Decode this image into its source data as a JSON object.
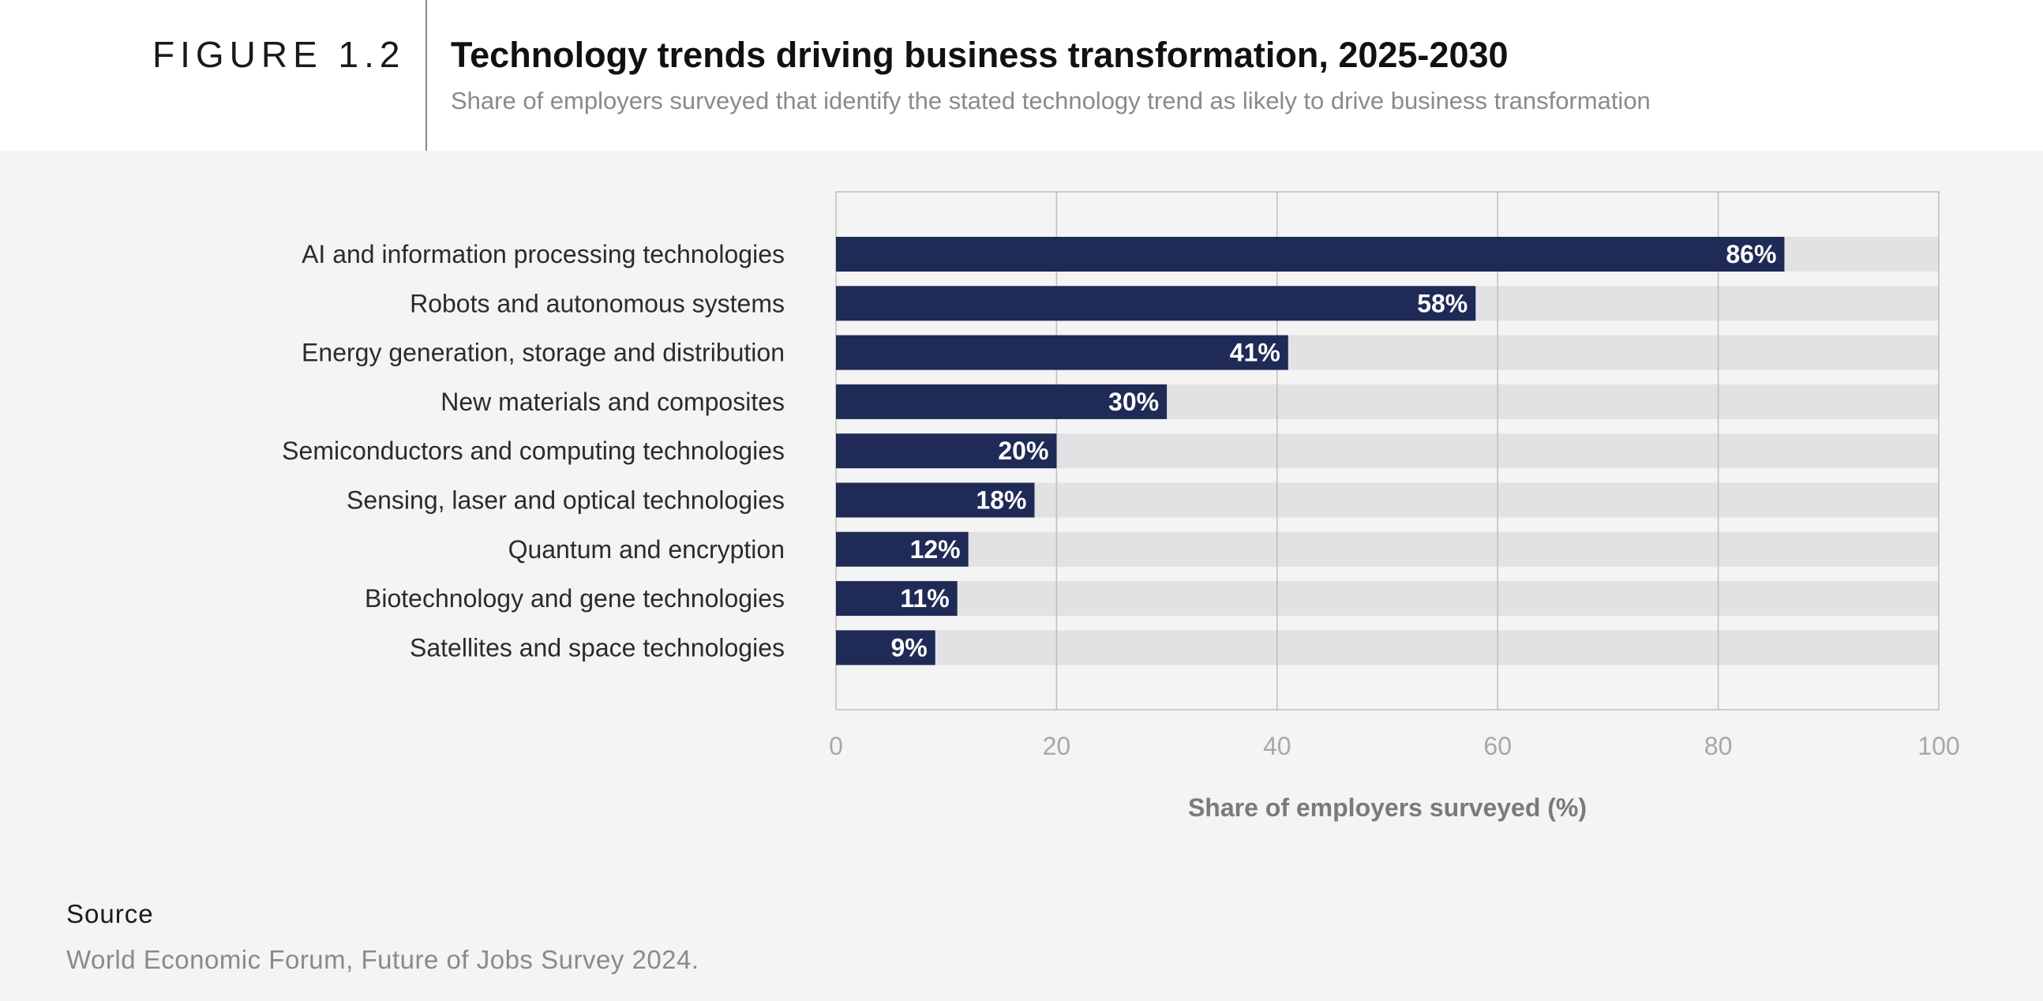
{
  "figure_label": "FIGURE 1.2",
  "source": {
    "label": "Source",
    "text": "World Economic Forum, Future of Jobs Survey 2024."
  },
  "colors": {
    "bar": "#1f2a56",
    "track": "#e2e2e5",
    "grid": "#bdbdbd",
    "tick": "#a8a8a8",
    "axis_label": "#7a7a7a",
    "category_text": "#2b2b2b",
    "value_label": "#ffffff"
  },
  "chart_data": {
    "type": "bar",
    "orientation": "horizontal",
    "title": "Technology trends driving business transformation, 2025-2030",
    "subtitle": "Share of employers surveyed that identify the stated technology trend as likely to drive business transformation",
    "xlabel": "Share of employers surveyed (%)",
    "ylabel": "",
    "xlim": [
      0,
      100
    ],
    "xticks": [
      0,
      20,
      40,
      60,
      80,
      100
    ],
    "grid": true,
    "categories": [
      "AI and information processing technologies",
      "Robots and autonomous systems",
      "Energy generation, storage and distribution",
      "New materials and composites",
      "Semiconductors and computing technologies",
      "Sensing, laser and optical technologies",
      "Quantum and encryption",
      "Biotechnology and gene technologies",
      "Satellites and space technologies"
    ],
    "values": [
      86,
      58,
      41,
      30,
      20,
      18,
      12,
      11,
      9
    ],
    "value_labels": [
      "86%",
      "58%",
      "41%",
      "30%",
      "20%",
      "18%",
      "12%",
      "11%",
      "9%"
    ]
  }
}
